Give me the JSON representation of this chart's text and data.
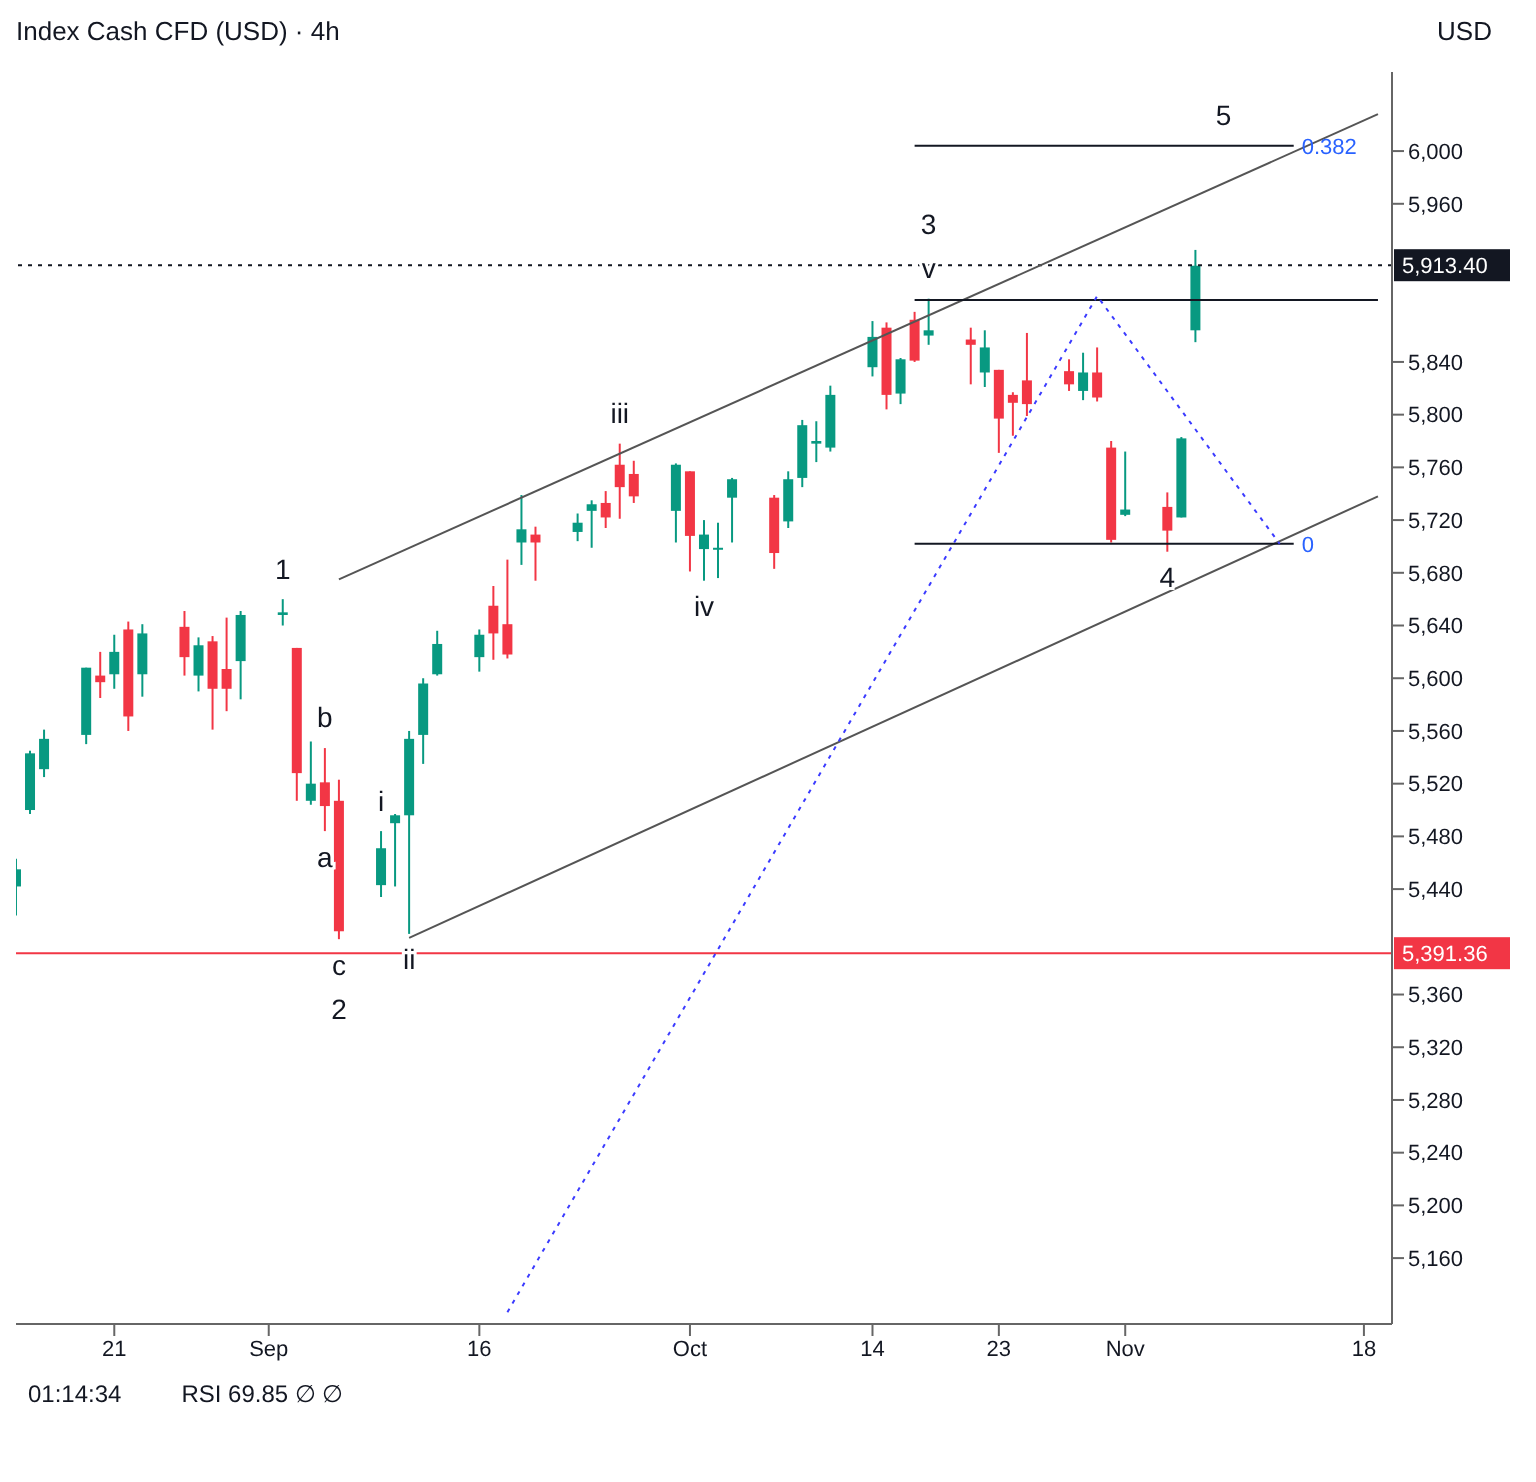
{
  "chart_data": {
    "type": "candlestick",
    "title": "Index Cash CFD (USD) · 4h",
    "ylabel": "USD",
    "xlim": [
      "--08-14",
      "--11-20"
    ],
    "xticks": [
      {
        "value": "--08-21",
        "label": "21"
      },
      {
        "value": "--09-01",
        "label": "Sep"
      },
      {
        "value": "--09-16",
        "label": "16"
      },
      {
        "value": "--10-01",
        "label": "Oct"
      },
      {
        "value": "--10-14",
        "label": "14"
      },
      {
        "value": "--10-23",
        "label": "23"
      },
      {
        "value": "--11-01",
        "label": "Nov"
      },
      {
        "value": "--11-18",
        "label": "18"
      }
    ],
    "ylim": [
      5110,
      6060
    ],
    "yticks": [
      {
        "value": 5160,
        "label": "5,160"
      },
      {
        "value": 5200,
        "label": "5,200"
      },
      {
        "value": 5240,
        "label": "5,240"
      },
      {
        "value": 5280,
        "label": "5,280"
      },
      {
        "value": 5320,
        "label": "5,320"
      },
      {
        "value": 5360,
        "label": "5,360"
      },
      {
        "value": 5440,
        "label": "5,440"
      },
      {
        "value": 5480,
        "label": "5,480"
      },
      {
        "value": 5520,
        "label": "5,520"
      },
      {
        "value": 5560,
        "label": "5,560"
      },
      {
        "value": 5600,
        "label": "5,600"
      },
      {
        "value": 5640,
        "label": "5,640"
      },
      {
        "value": 5680,
        "label": "5,680"
      },
      {
        "value": 5720,
        "label": "5,720"
      },
      {
        "value": 5760,
        "label": "5,760"
      },
      {
        "value": 5800,
        "label": "5,800"
      },
      {
        "value": 5840,
        "label": "5,840"
      },
      {
        "value": 5960,
        "label": "5,960"
      },
      {
        "value": 6000,
        "label": "6,000"
      }
    ],
    "grid": false,
    "legend": false,
    "series": [
      {
        "x": [
          "--08-14",
          "--08-15",
          "--08-16",
          "--08-19",
          "--08-20",
          "--08-21",
          "--08-22",
          "--08-23",
          "--08-26",
          "--08-27",
          "--08-28",
          "--08-29",
          "--08-30",
          "--09-02",
          "--09-03",
          "--09-04",
          "--09-05",
          "--09-06",
          "--09-09",
          "--09-10",
          "--09-11",
          "--09-12",
          "--09-13",
          "--09-16",
          "--09-17",
          "--09-18",
          "--09-19",
          "--09-20",
          "--09-23",
          "--09-24",
          "--09-25",
          "--09-26",
          "--09-27",
          "--09-30",
          "--10-01",
          "--10-02",
          "--10-03",
          "--10-04",
          "--10-07",
          "--10-08",
          "--10-09",
          "--10-10",
          "--10-11",
          "--10-14",
          "--10-15",
          "--10-16",
          "--10-17",
          "--10-18",
          "--10-21",
          "--10-22",
          "--10-23",
          "--10-24",
          "--10-25",
          "--10-28",
          "--10-29",
          "--10-30",
          "--10-31",
          "--11-01",
          "--11-04",
          "--11-05",
          "--11-06"
        ],
        "ohlc": [
          [
            5442,
            5463,
            5420,
            5455
          ],
          [
            5500,
            5545,
            5497,
            5543
          ],
          [
            5531,
            5561,
            5525,
            5554
          ],
          [
            5557,
            5608,
            5550,
            5608
          ],
          [
            5602,
            5620,
            5585,
            5597
          ],
          [
            5603,
            5633,
            5592,
            5620
          ],
          [
            5637,
            5643,
            5560,
            5571
          ],
          [
            5603,
            5641,
            5586,
            5634
          ],
          [
            5639,
            5651,
            5602,
            5616
          ],
          [
            5602,
            5631,
            5590,
            5625
          ],
          [
            5628,
            5632,
            5561,
            5592
          ],
          [
            5607,
            5646,
            5575,
            5592
          ],
          [
            5613,
            5651,
            5584,
            5648
          ],
          [
            5648,
            5660,
            5640,
            5650
          ],
          [
            5623,
            5623,
            5507,
            5528
          ],
          [
            5507,
            5552,
            5504,
            5520
          ],
          [
            5521,
            5547,
            5484,
            5503
          ],
          [
            5507,
            5523,
            5402,
            5408
          ],
          [
            5443,
            5484,
            5434,
            5471
          ],
          [
            5490,
            5497,
            5442,
            5496
          ],
          [
            5496,
            5560,
            5406,
            5554
          ],
          [
            5557,
            5600,
            5535,
            5596
          ],
          [
            5603,
            5636,
            5602,
            5626
          ],
          [
            5616,
            5637,
            5605,
            5633
          ],
          [
            5655,
            5670,
            5614,
            5634
          ],
          [
            5641,
            5690,
            5615,
            5618
          ],
          [
            5703,
            5739,
            5686,
            5713
          ],
          [
            5709,
            5715,
            5674,
            5703
          ],
          [
            5711,
            5725,
            5704,
            5718
          ],
          [
            5727,
            5735,
            5699,
            5732
          ],
          [
            5733,
            5742,
            5714,
            5722
          ],
          [
            5762,
            5778,
            5721,
            5745
          ],
          [
            5755,
            5765,
            5733,
            5738
          ],
          [
            5727,
            5763,
            5703,
            5762
          ],
          [
            5757,
            5757,
            5681,
            5708
          ],
          [
            5698,
            5720,
            5674,
            5709
          ],
          [
            5698,
            5718,
            5676,
            5699
          ],
          [
            5737,
            5752,
            5703,
            5751
          ],
          [
            5737,
            5739,
            5683,
            5695
          ],
          [
            5719,
            5757,
            5714,
            5751
          ],
          [
            5752,
            5796,
            5745,
            5792
          ],
          [
            5778,
            5795,
            5764,
            5780
          ],
          [
            5775,
            5822,
            5772,
            5815
          ],
          [
            5836,
            5871,
            5829,
            5859
          ],
          [
            5866,
            5870,
            5804,
            5815
          ],
          [
            5816,
            5843,
            5808,
            5842
          ],
          [
            5872,
            5878,
            5840,
            5841
          ],
          [
            5860,
            5888,
            5853,
            5864
          ],
          [
            5857,
            5866,
            5823,
            5853
          ],
          [
            5832,
            5864,
            5821,
            5851
          ],
          [
            5834,
            5834,
            5771,
            5797
          ],
          [
            5815,
            5817,
            5784,
            5809
          ],
          [
            5826,
            5862,
            5799,
            5808
          ],
          [
            5833,
            5842,
            5818,
            5823
          ],
          [
            5818,
            5847,
            5811,
            5832
          ],
          [
            5832,
            5851,
            5810,
            5813
          ],
          [
            5775,
            5780,
            5703,
            5705
          ],
          [
            5724,
            5772,
            5723,
            5728
          ],
          [
            5730,
            5741,
            5696,
            5712
          ],
          [
            5722,
            5783,
            5722,
            5782
          ],
          [
            5864,
            5925,
            5855,
            5913
          ]
        ],
        "colors": [
          "#089981",
          "#089981",
          "#089981",
          "#089981",
          "#f23645",
          "#089981",
          "#f23645",
          "#089981",
          "#f23645",
          "#089981",
          "#f23645",
          "#f23645",
          "#089981",
          "#089981",
          "#f23645",
          "#089981",
          "#f23645",
          "#f23645",
          "#089981",
          "#089981",
          "#089981",
          "#089981",
          "#089981",
          "#089981",
          "#f23645",
          "#f23645",
          "#089981",
          "#f23645",
          "#089981",
          "#089981",
          "#f23645",
          "#f23645",
          "#f23645",
          "#089981",
          "#f23645",
          "#089981",
          "#089981",
          "#089981",
          "#f23645",
          "#089981",
          "#089981",
          "#089981",
          "#089981",
          "#089981",
          "#f23645",
          "#089981",
          "#f23645",
          "#089981",
          "#f23645",
          "#089981",
          "#f23645",
          "#f23645",
          "#f23645",
          "#f23645",
          "#089981",
          "#f23645",
          "#f23645",
          "#089981",
          "#f23645",
          "#089981",
          "#089981"
        ]
      },
      {
        "type": "line",
        "color": "#555555",
        "x": [
          "--09-06",
          "--11-19"
        ],
        "values": [
          5675,
          6028
        ]
      },
      {
        "type": "line",
        "color": "#555555",
        "x": [
          "--09-11",
          "--11-19"
        ],
        "values": [
          5403,
          5738
        ]
      },
      {
        "type": "line",
        "color": "#131722",
        "x": [
          "--10-17",
          "--11-19"
        ],
        "values": [
          5887,
          5887
        ]
      },
      {
        "type": "line",
        "name": "0.382",
        "color": "#131722",
        "x": [
          "--10-17",
          "--11-13"
        ],
        "values": [
          6004,
          6004
        ]
      },
      {
        "type": "line",
        "name": "0",
        "color": "#131722",
        "x": [
          "--10-17",
          "--11-13"
        ],
        "values": [
          5702,
          5702
        ]
      },
      {
        "type": "line",
        "color": "#3b3bff",
        "line_style": "dotted",
        "x": [
          "--09-18",
          "--10-30",
          "--11-12"
        ],
        "values": [
          5119,
          5890,
          5702
        ]
      }
    ],
    "ref_lines": [
      {
        "axis": "y",
        "value": 5913.4,
        "label": "5,913.40",
        "color": "#131722",
        "line_style": "dotted"
      },
      {
        "axis": "y",
        "value": 5391.36,
        "label": "5,391.36",
        "color": "#f23645"
      }
    ],
    "annotations": [
      {
        "text": "a",
        "x": "--09-05",
        "y": 5484
      },
      {
        "text": "b",
        "x": "--09-05",
        "y": 5547
      },
      {
        "text": "c",
        "x": "--09-06",
        "y": 5402
      },
      {
        "text": "i",
        "x": "--09-09",
        "y": 5484
      },
      {
        "text": "ii",
        "x": "--09-11",
        "y": 5406
      },
      {
        "text": "iii",
        "x": "--09-26",
        "y": 5778
      },
      {
        "text": "iv",
        "x": "--10-02",
        "y": 5674
      },
      {
        "text": "v",
        "x": "--10-18",
        "y": 5888
      },
      {
        "text": "1",
        "x": "--09-02",
        "y": 5660
      },
      {
        "text": "2",
        "x": "--09-06",
        "y": 5402
      },
      {
        "text": "3",
        "x": "--10-18",
        "y": 5888
      },
      {
        "text": "4",
        "x": "--11-04",
        "y": 5696
      },
      {
        "text": "5",
        "x": "--11-08",
        "y": 6004
      },
      "01:14:34",
      "RSI 69.85 ∅ ∅"
    ]
  }
}
